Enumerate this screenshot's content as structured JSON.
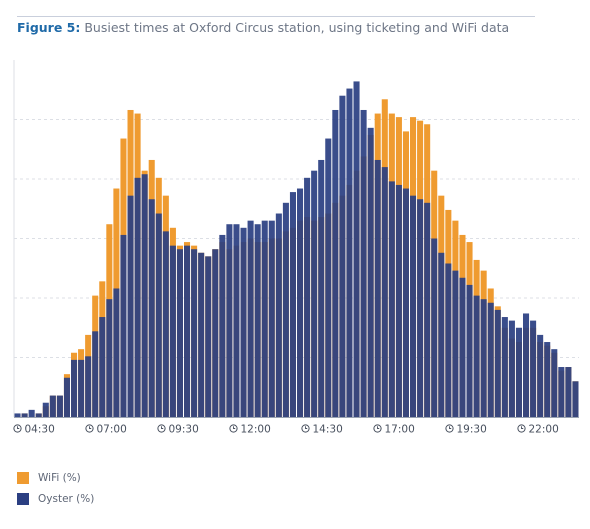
{
  "title": {
    "figure_label": "Figure 5:",
    "text": "Busiest times at Oxford Circus station, using ticketing and WiFi data"
  },
  "colors": {
    "wifi": "#ef9b30",
    "oyster": "#2b3f82",
    "grid": "#dcdfe5",
    "axis": "#9aa3b2"
  },
  "chart_data": {
    "type": "bar",
    "grid": true,
    "legend_position": "bottom-left",
    "ylim": [
      0,
      100
    ],
    "x_tick_labels": [
      "04:30",
      "07:00",
      "09:30",
      "12:00",
      "14:30",
      "17:00",
      "19:30",
      "22:00"
    ],
    "series": [
      {
        "name": "WiFi (%)",
        "values": [
          0,
          1,
          0,
          1,
          3,
          6,
          6,
          12,
          18,
          19,
          23,
          34,
          38,
          54,
          64,
          78,
          86,
          85,
          69,
          72,
          67,
          62,
          53,
          48,
          49,
          48,
          46,
          45,
          47,
          49,
          47,
          48,
          49,
          50,
          49,
          49,
          50,
          50,
          52,
          53,
          55,
          56,
          55,
          56,
          57,
          60,
          62,
          65,
          69,
          73,
          79,
          85,
          89,
          85,
          84,
          80,
          84,
          83,
          82,
          69,
          62,
          58,
          55,
          51,
          49,
          44,
          41,
          36,
          31,
          25,
          22,
          21,
          25,
          25,
          21,
          20,
          18,
          13,
          14,
          10
        ]
      },
      {
        "name": "Oyster (%)",
        "values": [
          1,
          1,
          2,
          1,
          4,
          6,
          6,
          11,
          16,
          16,
          17,
          24,
          28,
          33,
          36,
          51,
          62,
          67,
          68,
          61,
          57,
          52,
          48,
          47,
          48,
          47,
          46,
          45,
          47,
          51,
          54,
          54,
          53,
          55,
          54,
          55,
          55,
          57,
          60,
          63,
          64,
          67,
          69,
          72,
          78,
          86,
          90,
          92,
          94,
          86,
          81,
          72,
          70,
          66,
          65,
          64,
          62,
          61,
          60,
          50,
          46,
          43,
          41,
          39,
          37,
          34,
          33,
          32,
          30,
          28,
          27,
          25,
          29,
          27,
          23,
          21,
          19,
          14,
          14,
          10
        ]
      }
    ]
  }
}
